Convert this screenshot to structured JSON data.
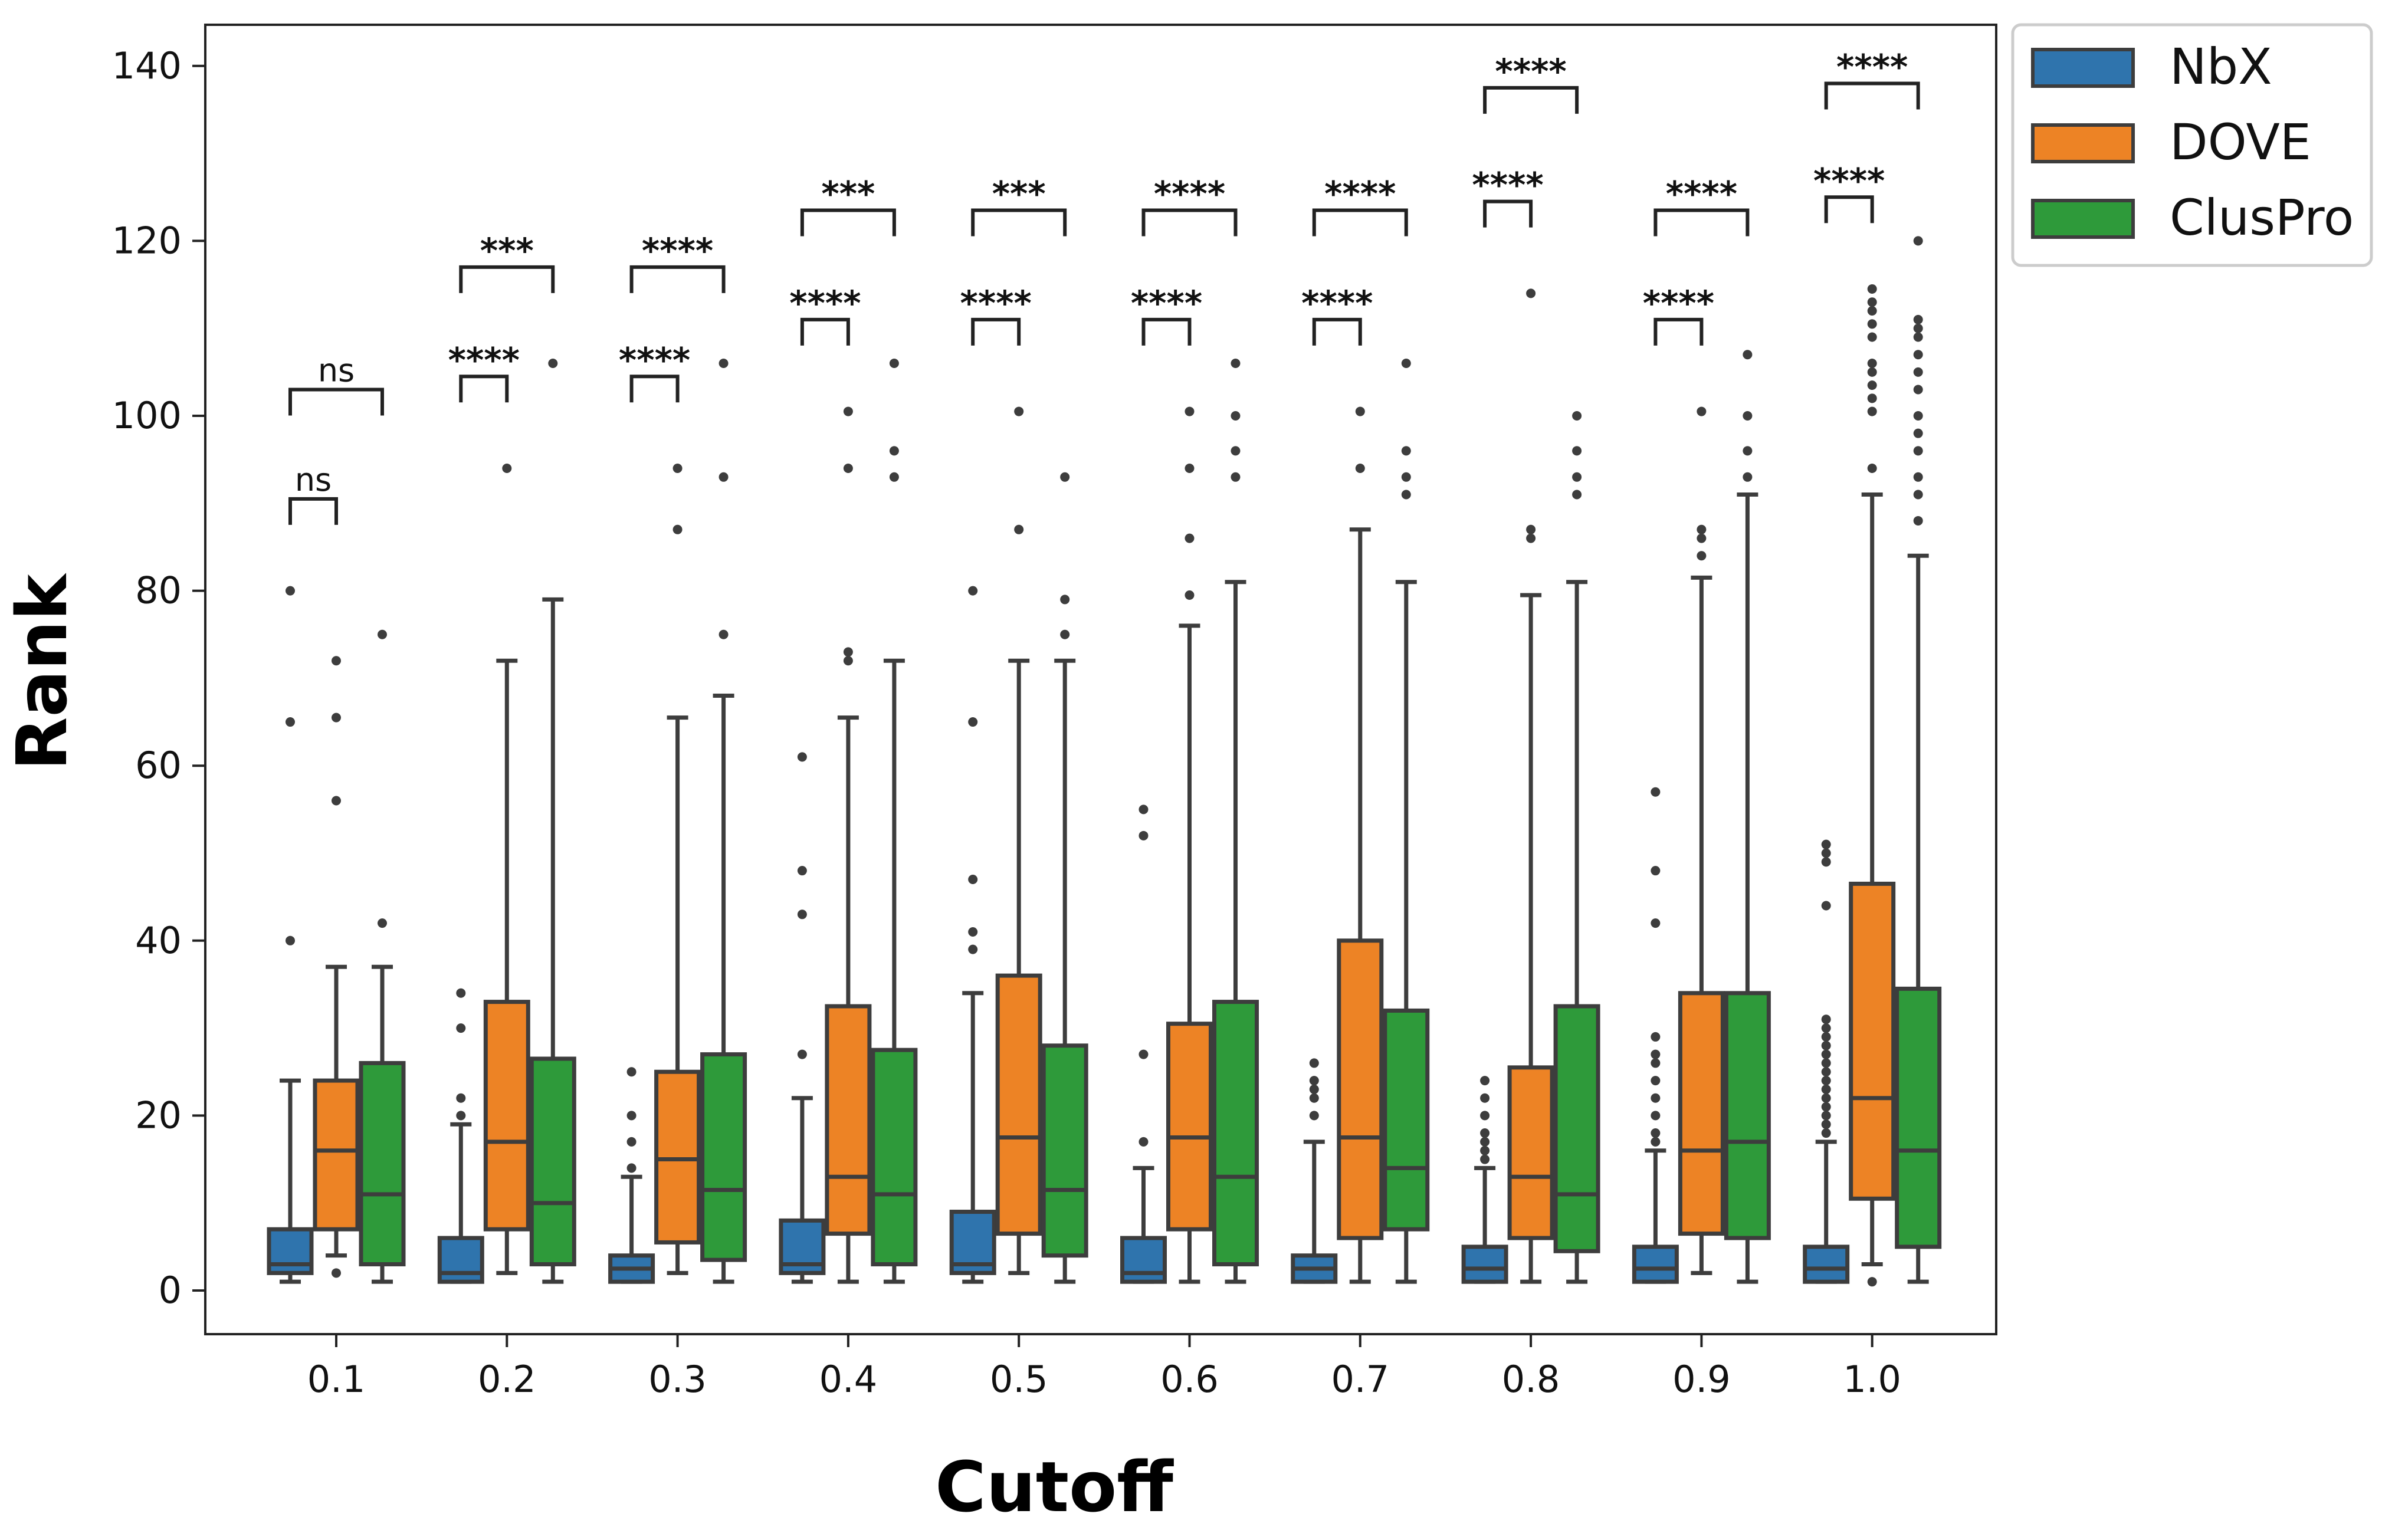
{
  "chart_data": {
    "type": "box",
    "xlabel": "Cutoff",
    "ylabel": "Rank",
    "ylim": [
      -5,
      145
    ],
    "yticks": [
      0,
      20,
      40,
      60,
      80,
      100,
      120,
      140
    ],
    "ytick_labels": [
      "0",
      "20",
      "40",
      "60",
      "80",
      "100",
      "120",
      "140"
    ],
    "categories": [
      "0.1",
      "0.2",
      "0.3",
      "0.4",
      "0.5",
      "0.6",
      "0.7",
      "0.8",
      "0.9",
      "1.0"
    ],
    "legend_position": "outside-top-right",
    "grid": false,
    "series": [
      {
        "name": "NbX",
        "color": "#2f74ad",
        "boxes": [
          {
            "whislo": 1,
            "q1": 2,
            "med": 3,
            "q3": 7,
            "whishi": 24,
            "fliers": [
              40,
              65,
              80
            ]
          },
          {
            "whislo": 1,
            "q1": 1,
            "med": 2,
            "q3": 6,
            "whishi": 19,
            "fliers": [
              20,
              22,
              30,
              34
            ]
          },
          {
            "whislo": 1,
            "q1": 1,
            "med": 2.5,
            "q3": 4,
            "whishi": 13,
            "fliers": [
              14,
              17,
              20,
              25
            ]
          },
          {
            "whislo": 1,
            "q1": 2,
            "med": 3,
            "q3": 8,
            "whishi": 22,
            "fliers": [
              27,
              43,
              48,
              61
            ]
          },
          {
            "whislo": 1,
            "q1": 2,
            "med": 3,
            "q3": 9,
            "whishi": 34,
            "fliers": [
              39,
              41,
              47,
              65,
              80
            ]
          },
          {
            "whislo": 1,
            "q1": 1,
            "med": 2,
            "q3": 6,
            "whishi": 14,
            "fliers": [
              17,
              27,
              52,
              55
            ]
          },
          {
            "whislo": 1,
            "q1": 1,
            "med": 2.5,
            "q3": 4,
            "whishi": 17,
            "fliers": [
              20,
              22,
              23,
              24,
              26
            ]
          },
          {
            "whislo": 1,
            "q1": 1,
            "med": 2.5,
            "q3": 5,
            "whishi": 14,
            "fliers": [
              15,
              16,
              17,
              18,
              20,
              22,
              24
            ]
          },
          {
            "whislo": 1,
            "q1": 1,
            "med": 2.5,
            "q3": 5,
            "whishi": 16,
            "fliers": [
              17,
              18,
              20,
              22,
              24,
              26,
              27,
              29,
              42,
              48,
              57
            ]
          },
          {
            "whislo": 1,
            "q1": 1,
            "med": 2.5,
            "q3": 5,
            "whishi": 17,
            "fliers": [
              18,
              19,
              20,
              21,
              22,
              23,
              24,
              25,
              26,
              27,
              28,
              29,
              30,
              31,
              44,
              49,
              50,
              51
            ]
          }
        ]
      },
      {
        "name": "DOVE",
        "color": "#ed8325",
        "boxes": [
          {
            "whislo": 4,
            "q1": 7,
            "med": 16,
            "q3": 24,
            "whishi": 37,
            "fliers": [
              2,
              56,
              65.5,
              72
            ]
          },
          {
            "whislo": 2,
            "q1": 7,
            "med": 17,
            "q3": 33,
            "whishi": 72,
            "fliers": [
              94
            ]
          },
          {
            "whislo": 2,
            "q1": 5.5,
            "med": 15,
            "q3": 25,
            "whishi": 65.5,
            "fliers": [
              87,
              94
            ]
          },
          {
            "whislo": 1,
            "q1": 6.5,
            "med": 13,
            "q3": 32.5,
            "whishi": 65.5,
            "fliers": [
              72,
              73,
              94,
              100.5
            ]
          },
          {
            "whislo": 2,
            "q1": 6.5,
            "med": 17.5,
            "q3": 36,
            "whishi": 72,
            "fliers": [
              87,
              100.5
            ]
          },
          {
            "whislo": 1,
            "q1": 7,
            "med": 17.5,
            "q3": 30.5,
            "whishi": 76,
            "fliers": [
              79.5,
              86,
              94,
              100.5
            ]
          },
          {
            "whislo": 1,
            "q1": 6,
            "med": 17.5,
            "q3": 40,
            "whishi": 87,
            "fliers": [
              94,
              100.5
            ]
          },
          {
            "whislo": 1,
            "q1": 6,
            "med": 13,
            "q3": 25.5,
            "whishi": 79.5,
            "fliers": [
              86,
              87,
              114
            ]
          },
          {
            "whislo": 2,
            "q1": 6.5,
            "med": 16,
            "q3": 34,
            "whishi": 81.5,
            "fliers": [
              84,
              86,
              87,
              100.5
            ]
          },
          {
            "whislo": 3,
            "q1": 10.5,
            "med": 22,
            "q3": 46.5,
            "whishi": 91,
            "fliers": [
              1,
              94,
              100.5,
              102,
              103.5,
              105,
              106,
              109,
              110.5,
              112,
              113,
              114.5
            ]
          }
        ]
      },
      {
        "name": "ClusPro",
        "color": "#2e9a3a",
        "boxes": [
          {
            "whislo": 1,
            "q1": 3,
            "med": 11,
            "q3": 26,
            "whishi": 37,
            "fliers": [
              42,
              75
            ]
          },
          {
            "whislo": 1,
            "q1": 3,
            "med": 10,
            "q3": 26.5,
            "whishi": 79,
            "fliers": [
              106
            ]
          },
          {
            "whislo": 1,
            "q1": 3.5,
            "med": 11.5,
            "q3": 27,
            "whishi": 68,
            "fliers": [
              75,
              93,
              106
            ]
          },
          {
            "whislo": 1,
            "q1": 3,
            "med": 11,
            "q3": 27.5,
            "whishi": 72,
            "fliers": [
              93,
              96,
              106
            ]
          },
          {
            "whislo": 1,
            "q1": 4,
            "med": 11.5,
            "q3": 28,
            "whishi": 72,
            "fliers": [
              75,
              79,
              93
            ]
          },
          {
            "whislo": 1,
            "q1": 3,
            "med": 13,
            "q3": 33,
            "whishi": 81,
            "fliers": [
              93,
              96,
              100,
              106
            ]
          },
          {
            "whislo": 1,
            "q1": 7,
            "med": 14,
            "q3": 32,
            "whishi": 81,
            "fliers": [
              91,
              93,
              96,
              106
            ]
          },
          {
            "whislo": 1,
            "q1": 4.5,
            "med": 11,
            "q3": 32.5,
            "whishi": 81,
            "fliers": [
              91,
              93,
              96,
              100
            ]
          },
          {
            "whislo": 1,
            "q1": 6,
            "med": 17,
            "q3": 34,
            "whishi": 91,
            "fliers": [
              93,
              96,
              100,
              107
            ]
          },
          {
            "whislo": 1,
            "q1": 5,
            "med": 16,
            "q3": 34.5,
            "whishi": 84,
            "fliers": [
              88,
              91,
              93,
              96,
              98,
              100,
              103,
              105,
              107,
              109,
              110,
              111,
              120
            ]
          }
        ]
      }
    ],
    "annotations": [
      {
        "category": "0.1",
        "comparisons": [
          {
            "pair": [
              "NbX",
              "DOVE"
            ],
            "y": 90.5,
            "label": "ns"
          },
          {
            "pair": [
              "NbX",
              "ClusPro"
            ],
            "y": 103,
            "label": "ns"
          }
        ]
      },
      {
        "category": "0.2",
        "comparisons": [
          {
            "pair": [
              "NbX",
              "DOVE"
            ],
            "y": 104.5,
            "label": "****"
          },
          {
            "pair": [
              "NbX",
              "ClusPro"
            ],
            "y": 117,
            "label": "***"
          }
        ]
      },
      {
        "category": "0.3",
        "comparisons": [
          {
            "pair": [
              "NbX",
              "DOVE"
            ],
            "y": 104.5,
            "label": "****"
          },
          {
            "pair": [
              "NbX",
              "ClusPro"
            ],
            "y": 117,
            "label": "****"
          }
        ]
      },
      {
        "category": "0.4",
        "comparisons": [
          {
            "pair": [
              "NbX",
              "DOVE"
            ],
            "y": 111,
            "label": "****"
          },
          {
            "pair": [
              "NbX",
              "ClusPro"
            ],
            "y": 123.5,
            "label": "***"
          }
        ]
      },
      {
        "category": "0.5",
        "comparisons": [
          {
            "pair": [
              "NbX",
              "DOVE"
            ],
            "y": 111,
            "label": "****"
          },
          {
            "pair": [
              "NbX",
              "ClusPro"
            ],
            "y": 123.5,
            "label": "***"
          }
        ]
      },
      {
        "category": "0.6",
        "comparisons": [
          {
            "pair": [
              "NbX",
              "DOVE"
            ],
            "y": 111,
            "label": "****"
          },
          {
            "pair": [
              "NbX",
              "ClusPro"
            ],
            "y": 123.5,
            "label": "****"
          }
        ]
      },
      {
        "category": "0.7",
        "comparisons": [
          {
            "pair": [
              "NbX",
              "DOVE"
            ],
            "y": 111,
            "label": "****"
          },
          {
            "pair": [
              "NbX",
              "ClusPro"
            ],
            "y": 123.5,
            "label": "****"
          }
        ]
      },
      {
        "category": "0.8",
        "comparisons": [
          {
            "pair": [
              "NbX",
              "DOVE"
            ],
            "y": 124.5,
            "label": "****"
          },
          {
            "pair": [
              "NbX",
              "ClusPro"
            ],
            "y": 137.5,
            "label": "****"
          }
        ]
      },
      {
        "category": "0.9",
        "comparisons": [
          {
            "pair": [
              "NbX",
              "DOVE"
            ],
            "y": 111,
            "label": "****"
          },
          {
            "pair": [
              "NbX",
              "ClusPro"
            ],
            "y": 123.5,
            "label": "****"
          }
        ]
      },
      {
        "category": "1.0",
        "comparisons": [
          {
            "pair": [
              "NbX",
              "DOVE"
            ],
            "y": 125,
            "label": "****"
          },
          {
            "pair": [
              "NbX",
              "ClusPro"
            ],
            "y": 138,
            "label": "****"
          }
        ]
      }
    ]
  }
}
